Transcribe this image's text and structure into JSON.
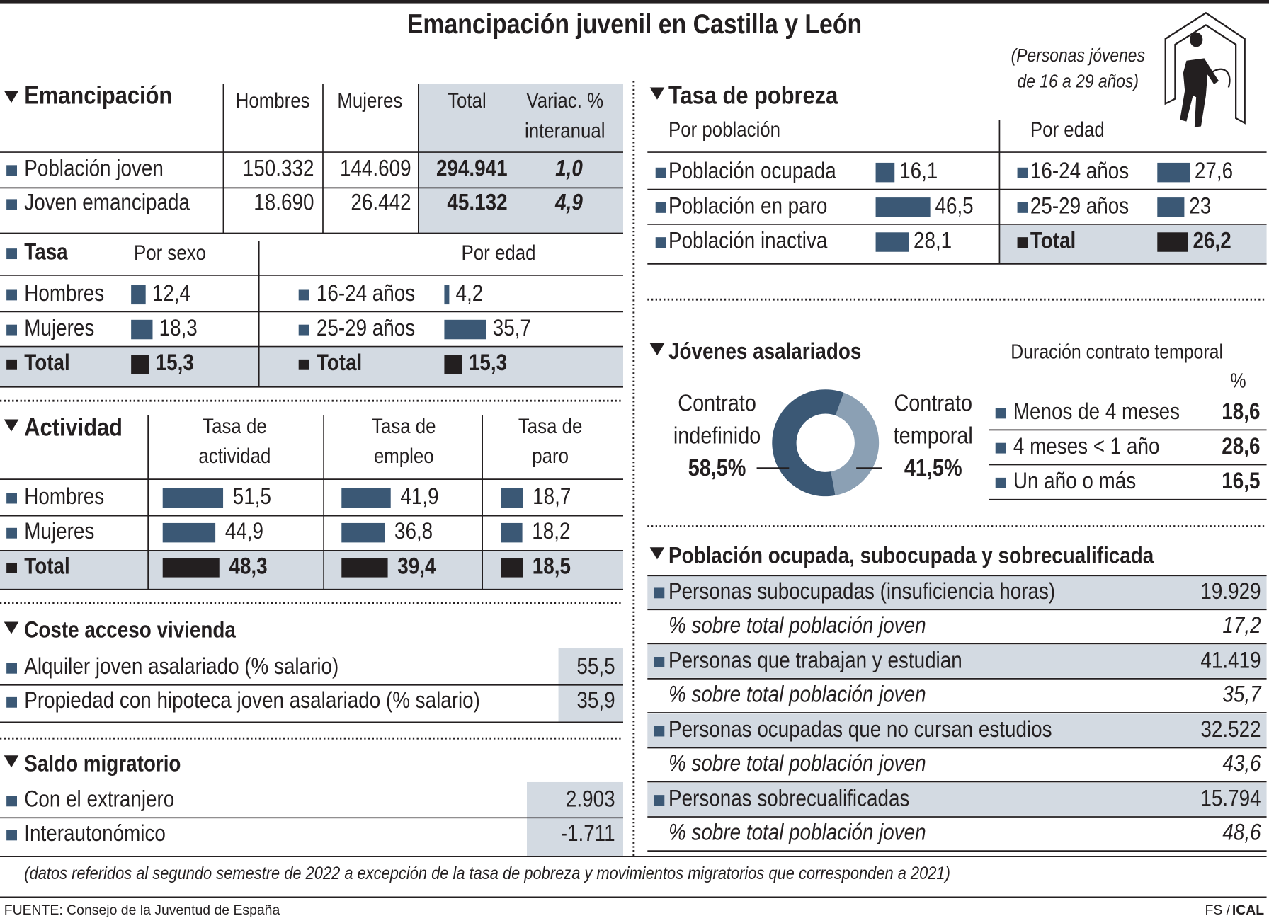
{
  "title": "Emancipación juvenil en Castilla y León",
  "population_note": [
    "(Personas jóvenes",
    "de 16 a 29 años)"
  ],
  "colors": {
    "bar": "#3b5875",
    "total": "#231f20",
    "shade": "#d3dae2"
  },
  "emancipacion": {
    "heading": "Emancipación",
    "columns": [
      [
        "Hombres"
      ],
      [
        "Mujeres"
      ],
      [
        "Total"
      ],
      [
        "Variac. %",
        "interanual"
      ]
    ],
    "rows": [
      {
        "label": "Población joven",
        "cells": [
          "150.332",
          "144.609",
          "294.941",
          "1,0"
        ]
      },
      {
        "label": "Joven emancipada",
        "cells": [
          "18.690",
          "26.442",
          "45.132",
          "4,9"
        ]
      }
    ]
  },
  "tasa": {
    "heading": "Tasa",
    "by_sex_heading": "Por sexo",
    "by_age_heading": "Por edad",
    "by_sex": [
      {
        "label": "Hombres",
        "value": 12.4,
        "value_label": "12,4"
      },
      {
        "label": "Mujeres",
        "value": 18.3,
        "value_label": "18,3"
      },
      {
        "label": "Total",
        "value": 15.3,
        "value_label": "15,3"
      }
    ],
    "by_age": [
      {
        "label": "16-24 años",
        "value": 4.2,
        "value_label": "4,2"
      },
      {
        "label": "25-29 años",
        "value": 35.7,
        "value_label": "35,7"
      },
      {
        "label": "Total",
        "value": 15.3,
        "value_label": "15,3"
      }
    ]
  },
  "actividad": {
    "heading": "Actividad",
    "columns": [
      [
        "Tasa de",
        "actividad"
      ],
      [
        "Tasa de",
        "empleo"
      ],
      [
        "Tasa de",
        "paro"
      ]
    ],
    "rows": [
      {
        "label": "Hombres",
        "values": [
          51.5,
          41.9,
          18.7
        ],
        "value_labels": [
          "51,5",
          "41,9",
          "18,7"
        ]
      },
      {
        "label": "Mujeres",
        "values": [
          44.9,
          36.8,
          18.2
        ],
        "value_labels": [
          "44,9",
          "36,8",
          "18,2"
        ]
      },
      {
        "label": "Total",
        "values": [
          48.3,
          39.4,
          18.5
        ],
        "value_labels": [
          "48,3",
          "39,4",
          "18,5"
        ]
      }
    ]
  },
  "coste": {
    "heading": "Coste acceso vivienda",
    "rows": [
      {
        "label": "Alquiler joven asalariado (% salario)",
        "value": "55,5"
      },
      {
        "label": "Propiedad con hipoteca joven asalariado (% salario)",
        "value": "35,9"
      }
    ]
  },
  "saldo": {
    "heading": "Saldo migratorio",
    "rows": [
      {
        "label": "Con el extranjero",
        "value": "2.903"
      },
      {
        "label": "Interautonómico",
        "value": "-1.711"
      }
    ]
  },
  "pobreza": {
    "heading": "Tasa de pobreza",
    "by_population_heading": "Por población",
    "by_age_heading": "Por edad",
    "by_population": [
      {
        "label": "Población ocupada",
        "value": 16.1,
        "value_label": "16,1"
      },
      {
        "label": "Población en paro",
        "value": 46.5,
        "value_label": "46,5"
      },
      {
        "label": "Población inactiva",
        "value": 28.1,
        "value_label": "28,1"
      }
    ],
    "by_age": [
      {
        "label": "16-24 años",
        "value": 27.6,
        "value_label": "27,6"
      },
      {
        "label": "25-29 años",
        "value": 23,
        "value_label": "23"
      },
      {
        "label": "Total",
        "value": 26.2,
        "value_label": "26,2"
      }
    ]
  },
  "asalariados": {
    "heading": "Jóvenes asalariados",
    "donut": [
      {
        "label": [
          "Contrato",
          "indefinido"
        ],
        "value": 58.5,
        "value_label": "58,5%",
        "color": "#3b5875"
      },
      {
        "label": [
          "Contrato",
          "temporal"
        ],
        "value": 41.5,
        "value_label": "41,5%",
        "color": "#8ba0b4"
      }
    ],
    "duration_heading": "Duración contrato temporal",
    "duration_unit": "%",
    "duration": [
      {
        "label": "Menos de 4 meses",
        "value": "18,6"
      },
      {
        "label": "4 meses < 1 año",
        "value": "28,6"
      },
      {
        "label": "Un año o más",
        "value": "16,5"
      }
    ]
  },
  "ocupada": {
    "heading": "Población ocupada, subocupada y sobrecualificada",
    "rows": [
      {
        "label": "Personas subocupadas (insuficiencia horas)",
        "value": "19.929",
        "share_label": "% sobre total población joven",
        "share": "17,2"
      },
      {
        "label": "Personas que trabajan y estudian",
        "value": "41.419",
        "share_label": "% sobre total población joven",
        "share": "35,7"
      },
      {
        "label": "Personas ocupadas que no cursan estudios",
        "value": "32.522",
        "share_label": "% sobre total población joven",
        "share": "43,6"
      },
      {
        "label": "Personas sobrecualificadas",
        "value": "15.794",
        "share_label": "% sobre total población joven",
        "share": "48,6"
      }
    ]
  },
  "footnote": "(datos referidos al segundo semestre de 2022 a excepción de la tasa de pobreza y movimientos migratorios que corresponden a 2021)",
  "source": "FUENTE: Consejo de la Juventud de España",
  "credit": [
    "FS /",
    "ICAL"
  ]
}
